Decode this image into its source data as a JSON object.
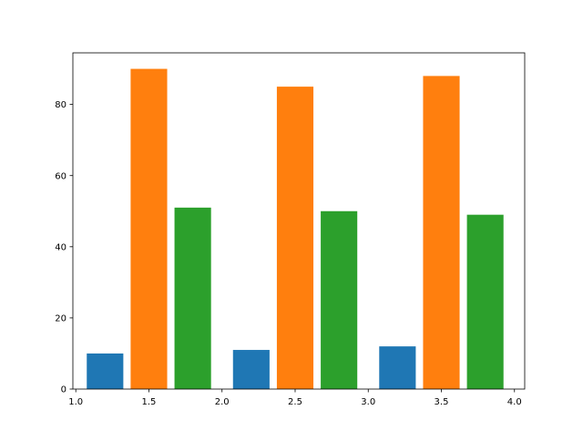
{
  "chart_data": {
    "type": "bar",
    "title": "",
    "xlabel": "",
    "ylabel": "",
    "xlim": [
      0.98,
      4.07
    ],
    "ylim": [
      0,
      94.5
    ],
    "xticks": [
      1.0,
      1.5,
      2.0,
      2.5,
      3.0,
      3.5,
      4.0
    ],
    "xtick_labels": [
      "1.0",
      "1.5",
      "2.0",
      "2.5",
      "3.0",
      "3.5",
      "4.0"
    ],
    "yticks": [
      0,
      20,
      40,
      60,
      80
    ],
    "ytick_labels": [
      "0",
      "20",
      "40",
      "60",
      "80"
    ],
    "grid": false,
    "legend": "none",
    "bar_width": 0.25,
    "series": [
      {
        "color": "#1f77b4",
        "x": [
          1.2,
          2.2,
          3.2
        ],
        "values": [
          10,
          11,
          12
        ]
      },
      {
        "color": "#ff7f0e",
        "x": [
          1.5,
          2.5,
          3.5
        ],
        "values": [
          90,
          85,
          88
        ]
      },
      {
        "color": "#2ca02c",
        "x": [
          1.8,
          2.8,
          3.8
        ],
        "values": [
          51,
          50,
          49
        ]
      }
    ]
  }
}
